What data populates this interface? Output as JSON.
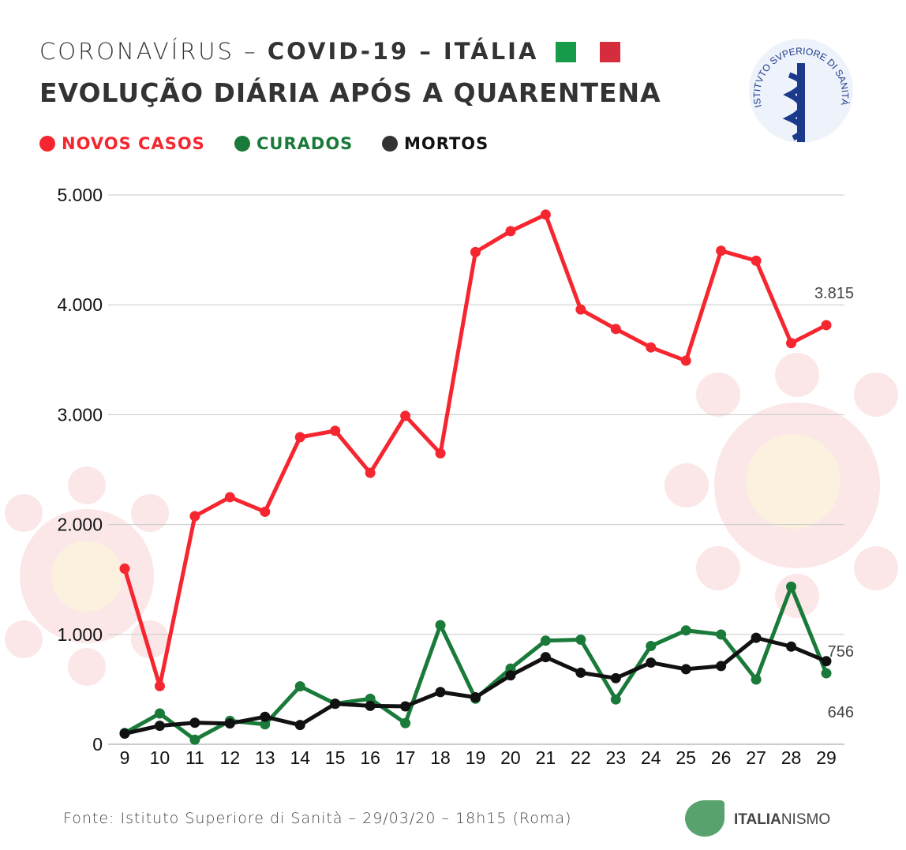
{
  "header": {
    "title_prefix": "CORONAVÍRUS – ",
    "title_bold": "COVID-19 – ITÁLIA",
    "subtitle": "EVOLUÇÃO DIÁRIA APÓS A QUARENTENA",
    "logo_text": "ISTITVTO SVPERIORE DI SANITÀ"
  },
  "footer": {
    "source": "Fonte: Istituto Superiore di Sanità – 29/03/20 – 18h15 (Roma)",
    "brand_a": "ITALIA",
    "brand_b": "NISMO"
  },
  "colors": {
    "red": "#f5262f",
    "green": "#1a7a3a",
    "black": "#111111",
    "flag_green": "#169b4a",
    "flag_red": "#d62d3e"
  },
  "chart_data": {
    "type": "line",
    "x": [
      9,
      10,
      11,
      12,
      13,
      14,
      15,
      16,
      17,
      18,
      19,
      20,
      21,
      22,
      23,
      24,
      25,
      26,
      27,
      28,
      29
    ],
    "ylim": [
      0,
      5000
    ],
    "yticks": [
      "0",
      "1.000",
      "2.000",
      "3.000",
      "4.000",
      "5.000"
    ],
    "series": [
      {
        "name": "NOVOS CASOS",
        "color": "#f5262f",
        "values": [
          1598,
          529,
          2076,
          2249,
          2116,
          2795,
          2853,
          2470,
          2989,
          2648,
          4480,
          4670,
          4821,
          3957,
          3780,
          3612,
          3491,
          4492,
          4401,
          3651,
          3815
        ],
        "end_label": "3.815"
      },
      {
        "name": "CURADOS",
        "color": "#1a7a3a",
        "values": [
          102,
          280,
          41,
          213,
          181,
          527,
          369,
          414,
          192,
          1084,
          415,
          689,
          943,
          952,
          408,
          894,
          1036,
          999,
          589,
          1434,
          646
        ],
        "end_label": "646"
      },
      {
        "name": "MORTOS",
        "color": "#111111",
        "values": [
          97,
          168,
          196,
          189,
          250,
          175,
          368,
          349,
          345,
          475,
          427,
          627,
          793,
          651,
          601,
          743,
          683,
          712,
          969,
          889,
          756
        ],
        "end_label": "756"
      }
    ]
  }
}
